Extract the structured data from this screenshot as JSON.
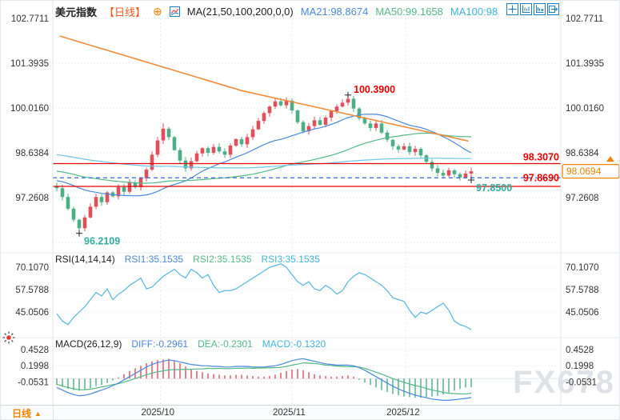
{
  "header": {
    "title": "美元指数",
    "period_tag": "【日线】",
    "add_icon": "⊕",
    "ma_label": "MA(21,50,100,200,0,0)",
    "ma21": "MA21:98.8674",
    "ma50": "MA50:99.1658",
    "ma100": "MA100:98"
  },
  "toolbar": {
    "icons": [
      {
        "name": "pan-icon"
      },
      {
        "name": "scale-price-axis-icon"
      },
      {
        "name": "scale-time-axis-icon"
      },
      {
        "name": "go-to-latest-icon"
      }
    ]
  },
  "rsi_header": {
    "label": "RSI(14,14,14)",
    "rsi1": "RSI1:35.1535",
    "rsi2": "RSI2:35.1535",
    "rsi3": "RSI3:35.1535"
  },
  "macd_header": {
    "label": "MACD(26,12,9)",
    "diff": "DIFF:-0.2961",
    "dea": "DEA:-0.2301",
    "macd": "MACD:-0.1320"
  },
  "footer": {
    "period": "日线",
    "arrow": "▲"
  },
  "watermark": "FX678",
  "colors": {
    "up": "#e0505a",
    "down": "#4bae85",
    "ma21": "#4a89dc",
    "ma50": "#53b987",
    "ma100": "#6cc6e8",
    "trend": "#ef8d3a",
    "sr_red": "#e60000",
    "dash_blue": "#2f6fd8",
    "teal_label": "#2fae9e",
    "tag_orange": "#f08300",
    "rsi_line": "#57b6dd",
    "grid": "#dcdfe3",
    "axis_text": "#333"
  },
  "chart_data": {
    "type": "candlestick",
    "symbol": "美元指数",
    "period": "日线",
    "main": {
      "axis_labels": [
        "102.7711",
        "101.3935",
        "100.0160",
        "98.6384",
        "97.2608"
      ],
      "price_top": 102.7711,
      "price_step": 1.3776,
      "first_open": 97.62,
      "closes": [
        97.55,
        97.28,
        96.92,
        96.58,
        96.32,
        96.65,
        96.98,
        97.28,
        97.12,
        97.42,
        97.3,
        97.58,
        97.44,
        97.72,
        97.58,
        97.86,
        98.12,
        98.58,
        99.02,
        99.38,
        99.12,
        98.72,
        98.4,
        98.16,
        98.38,
        98.62,
        98.78,
        98.64,
        98.82,
        98.68,
        98.58,
        98.86,
        99.06,
        98.9,
        99.12,
        99.36,
        99.62,
        99.86,
        100.06,
        100.22,
        100.1,
        100.24,
        99.94,
        99.58,
        99.3,
        99.46,
        99.64,
        99.5,
        99.72,
        99.92,
        100.06,
        100.18,
        100.3,
        100.0,
        99.7,
        99.54,
        99.4,
        99.54,
        99.26,
        99.04,
        98.84,
        98.74,
        98.84,
        98.66,
        98.76,
        98.56,
        98.36,
        98.16,
        98.02,
        97.94,
        98.1,
        97.98,
        97.88,
        98.0,
        98.07
      ],
      "wick_overrides": {
        "4": {
          "low": 96.2109
        },
        "19": {
          "high": 99.55
        },
        "52": {
          "high": 100.39
        },
        "74": {
          "low": 97.85
        }
      },
      "mas": [
        {
          "n": 21,
          "color": "#4a89dc"
        },
        {
          "n": 50,
          "color": "#53b987"
        },
        {
          "n": 100,
          "color": "#6cc6e8"
        }
      ],
      "prehistory": {
        "start": 99.6,
        "end": 97.6,
        "n": 100
      },
      "trendline": [
        {
          "i": 0.5,
          "p": 102.23
        },
        {
          "i": 33,
          "p": 100.55
        },
        {
          "i": 73.5,
          "p": 99.0
        }
      ],
      "hlines": [
        {
          "p": 98.307,
          "label": "98.3070",
          "style": "solid",
          "color": "#e60000",
          "label_color": "#e60000"
        },
        {
          "p": 97.869,
          "label": "97.8690",
          "style": "dashed",
          "color": "#2f6fd8",
          "label_color": "#e60000"
        },
        {
          "p": 97.606,
          "label": "",
          "style": "solid",
          "color": "#e60000",
          "label_color": "#e60000"
        }
      ],
      "markers": [
        {
          "text": "100.3900",
          "i": 52,
          "p": 100.39,
          "color": "#e60000",
          "pos": "above"
        },
        {
          "text": "96.2109",
          "i": 4,
          "p": 96.2109,
          "color": "#2fae9e",
          "pos": "below"
        },
        {
          "text": "97.8500",
          "i": 74,
          "p": 97.85,
          "color": "#2fae9e",
          "pos": "below"
        }
      ],
      "last_price_tag": {
        "text": "98.0694",
        "p": 98.0694
      }
    },
    "rsi": {
      "axis_labels": [
        "70.1070",
        "57.5788",
        "45.0506"
      ],
      "axis_values": [
        70.107,
        57.5788,
        45.0506
      ],
      "values": [
        44,
        40,
        38,
        42,
        45,
        48,
        52,
        56,
        54,
        58,
        52,
        55,
        57,
        60,
        62,
        64,
        58,
        59,
        62,
        65,
        67,
        69,
        66,
        64,
        69,
        67,
        64,
        66,
        60,
        56,
        57,
        57,
        58,
        60,
        62,
        64,
        66,
        68,
        70,
        71,
        72,
        70,
        66,
        62,
        60,
        62,
        58,
        57,
        60,
        58,
        55,
        57,
        62,
        65,
        67,
        66,
        64,
        62,
        60,
        57,
        53,
        52,
        51,
        46,
        42,
        45,
        44,
        46,
        48,
        50,
        46,
        40,
        38,
        37,
        35.15
      ]
    },
    "macd": {
      "axis_labels": [
        "0.4528",
        "0.1998",
        "-0.0531"
      ],
      "axis_values": [
        0.4528,
        0.1998,
        -0.0531
      ],
      "diff": [
        -0.14,
        -0.18,
        -0.22,
        -0.25,
        -0.27,
        -0.26,
        -0.24,
        -0.21,
        -0.18,
        -0.15,
        -0.11,
        -0.07,
        -0.02,
        0.03,
        0.08,
        0.13,
        0.18,
        0.22,
        0.25,
        0.27,
        0.29,
        0.28,
        0.26,
        0.24,
        0.22,
        0.21,
        0.2,
        0.2,
        0.19,
        0.19,
        0.18,
        0.18,
        0.19,
        0.19,
        0.19,
        0.18,
        0.18,
        0.18,
        0.19,
        0.2,
        0.22,
        0.25,
        0.28,
        0.3,
        0.31,
        0.29,
        0.27,
        0.25,
        0.23,
        0.22,
        0.21,
        0.21,
        0.21,
        0.2,
        0.17,
        0.13,
        0.08,
        0.03,
        -0.02,
        -0.07,
        -0.12,
        -0.16,
        -0.2,
        -0.23,
        -0.26,
        -0.28,
        -0.3,
        -0.32,
        -0.33,
        -0.34,
        -0.34,
        -0.33,
        -0.32,
        -0.31,
        -0.2961
      ],
      "hist": [
        -0.1,
        -0.13,
        -0.16,
        -0.18,
        -0.19,
        -0.17,
        -0.15,
        -0.12,
        -0.1,
        -0.07,
        -0.03,
        0.02,
        0.07,
        0.12,
        0.16,
        0.2,
        0.24,
        0.27,
        0.29,
        0.3,
        0.31,
        0.28,
        0.24,
        0.19,
        0.15,
        0.12,
        0.1,
        0.08,
        0.07,
        0.06,
        0.05,
        0.05,
        0.06,
        0.06,
        0.05,
        0.04,
        0.03,
        0.03,
        0.04,
        0.06,
        0.09,
        0.12,
        0.14,
        0.15,
        0.13,
        0.1,
        0.07,
        0.05,
        0.04,
        0.03,
        0.03,
        0.04,
        0.05,
        0.03,
        -0.02,
        -0.06,
        -0.1,
        -0.14,
        -0.18,
        -0.21,
        -0.24,
        -0.26,
        -0.28,
        -0.29,
        -0.3,
        -0.3,
        -0.29,
        -0.28,
        -0.27,
        -0.25,
        -0.22,
        -0.19,
        -0.16,
        -0.14,
        -0.132
      ]
    },
    "x_axis": {
      "dates": [
        {
          "label": "2025/10",
          "i": 18.5
        },
        {
          "label": "2025/11",
          "i": 42
        },
        {
          "label": "2025/12",
          "i": 62.3
        }
      ]
    },
    "layout_hint": {
      "grid": "dotted",
      "panels": [
        "price",
        "rsi",
        "macd"
      ]
    }
  }
}
